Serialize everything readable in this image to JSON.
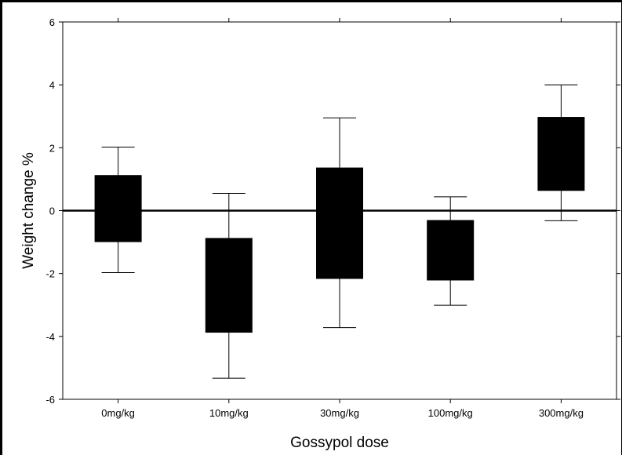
{
  "chart_data": {
    "type": "box",
    "title": "",
    "xlabel": "Gossypol dose",
    "ylabel": "Weight change %",
    "ylim": [
      -6,
      6
    ],
    "yticks": [
      -6,
      -4,
      -2,
      0,
      2,
      4,
      6
    ],
    "ytick_labels": [
      "-6",
      "-4",
      "-2",
      "0",
      "2",
      "4",
      "6"
    ],
    "grid": false,
    "reference_line_y": 0,
    "box_color": "#000000",
    "categories": [
      "0mg/kg",
      "10mg/kg",
      "30mg/kg",
      "100mg/kg",
      "300mg/kg"
    ],
    "boxes": [
      {
        "category": "0mg/kg",
        "whisker_low": -1.97,
        "box_low": -1.0,
        "box_high": 1.13,
        "whisker_high": 2.02
      },
      {
        "category": "10mg/kg",
        "whisker_low": -5.33,
        "box_low": -3.88,
        "box_high": -0.87,
        "whisker_high": 0.55
      },
      {
        "category": "30mg/kg",
        "whisker_low": -3.72,
        "box_low": -2.17,
        "box_high": 1.37,
        "whisker_high": 2.95
      },
      {
        "category": "100mg/kg",
        "whisker_low": -3.01,
        "box_low": -2.22,
        "box_high": -0.3,
        "whisker_high": 0.44
      },
      {
        "category": "300mg/kg",
        "whisker_low": -0.32,
        "box_low": 0.63,
        "box_high": 2.98,
        "whisker_high": 4.0
      }
    ]
  }
}
